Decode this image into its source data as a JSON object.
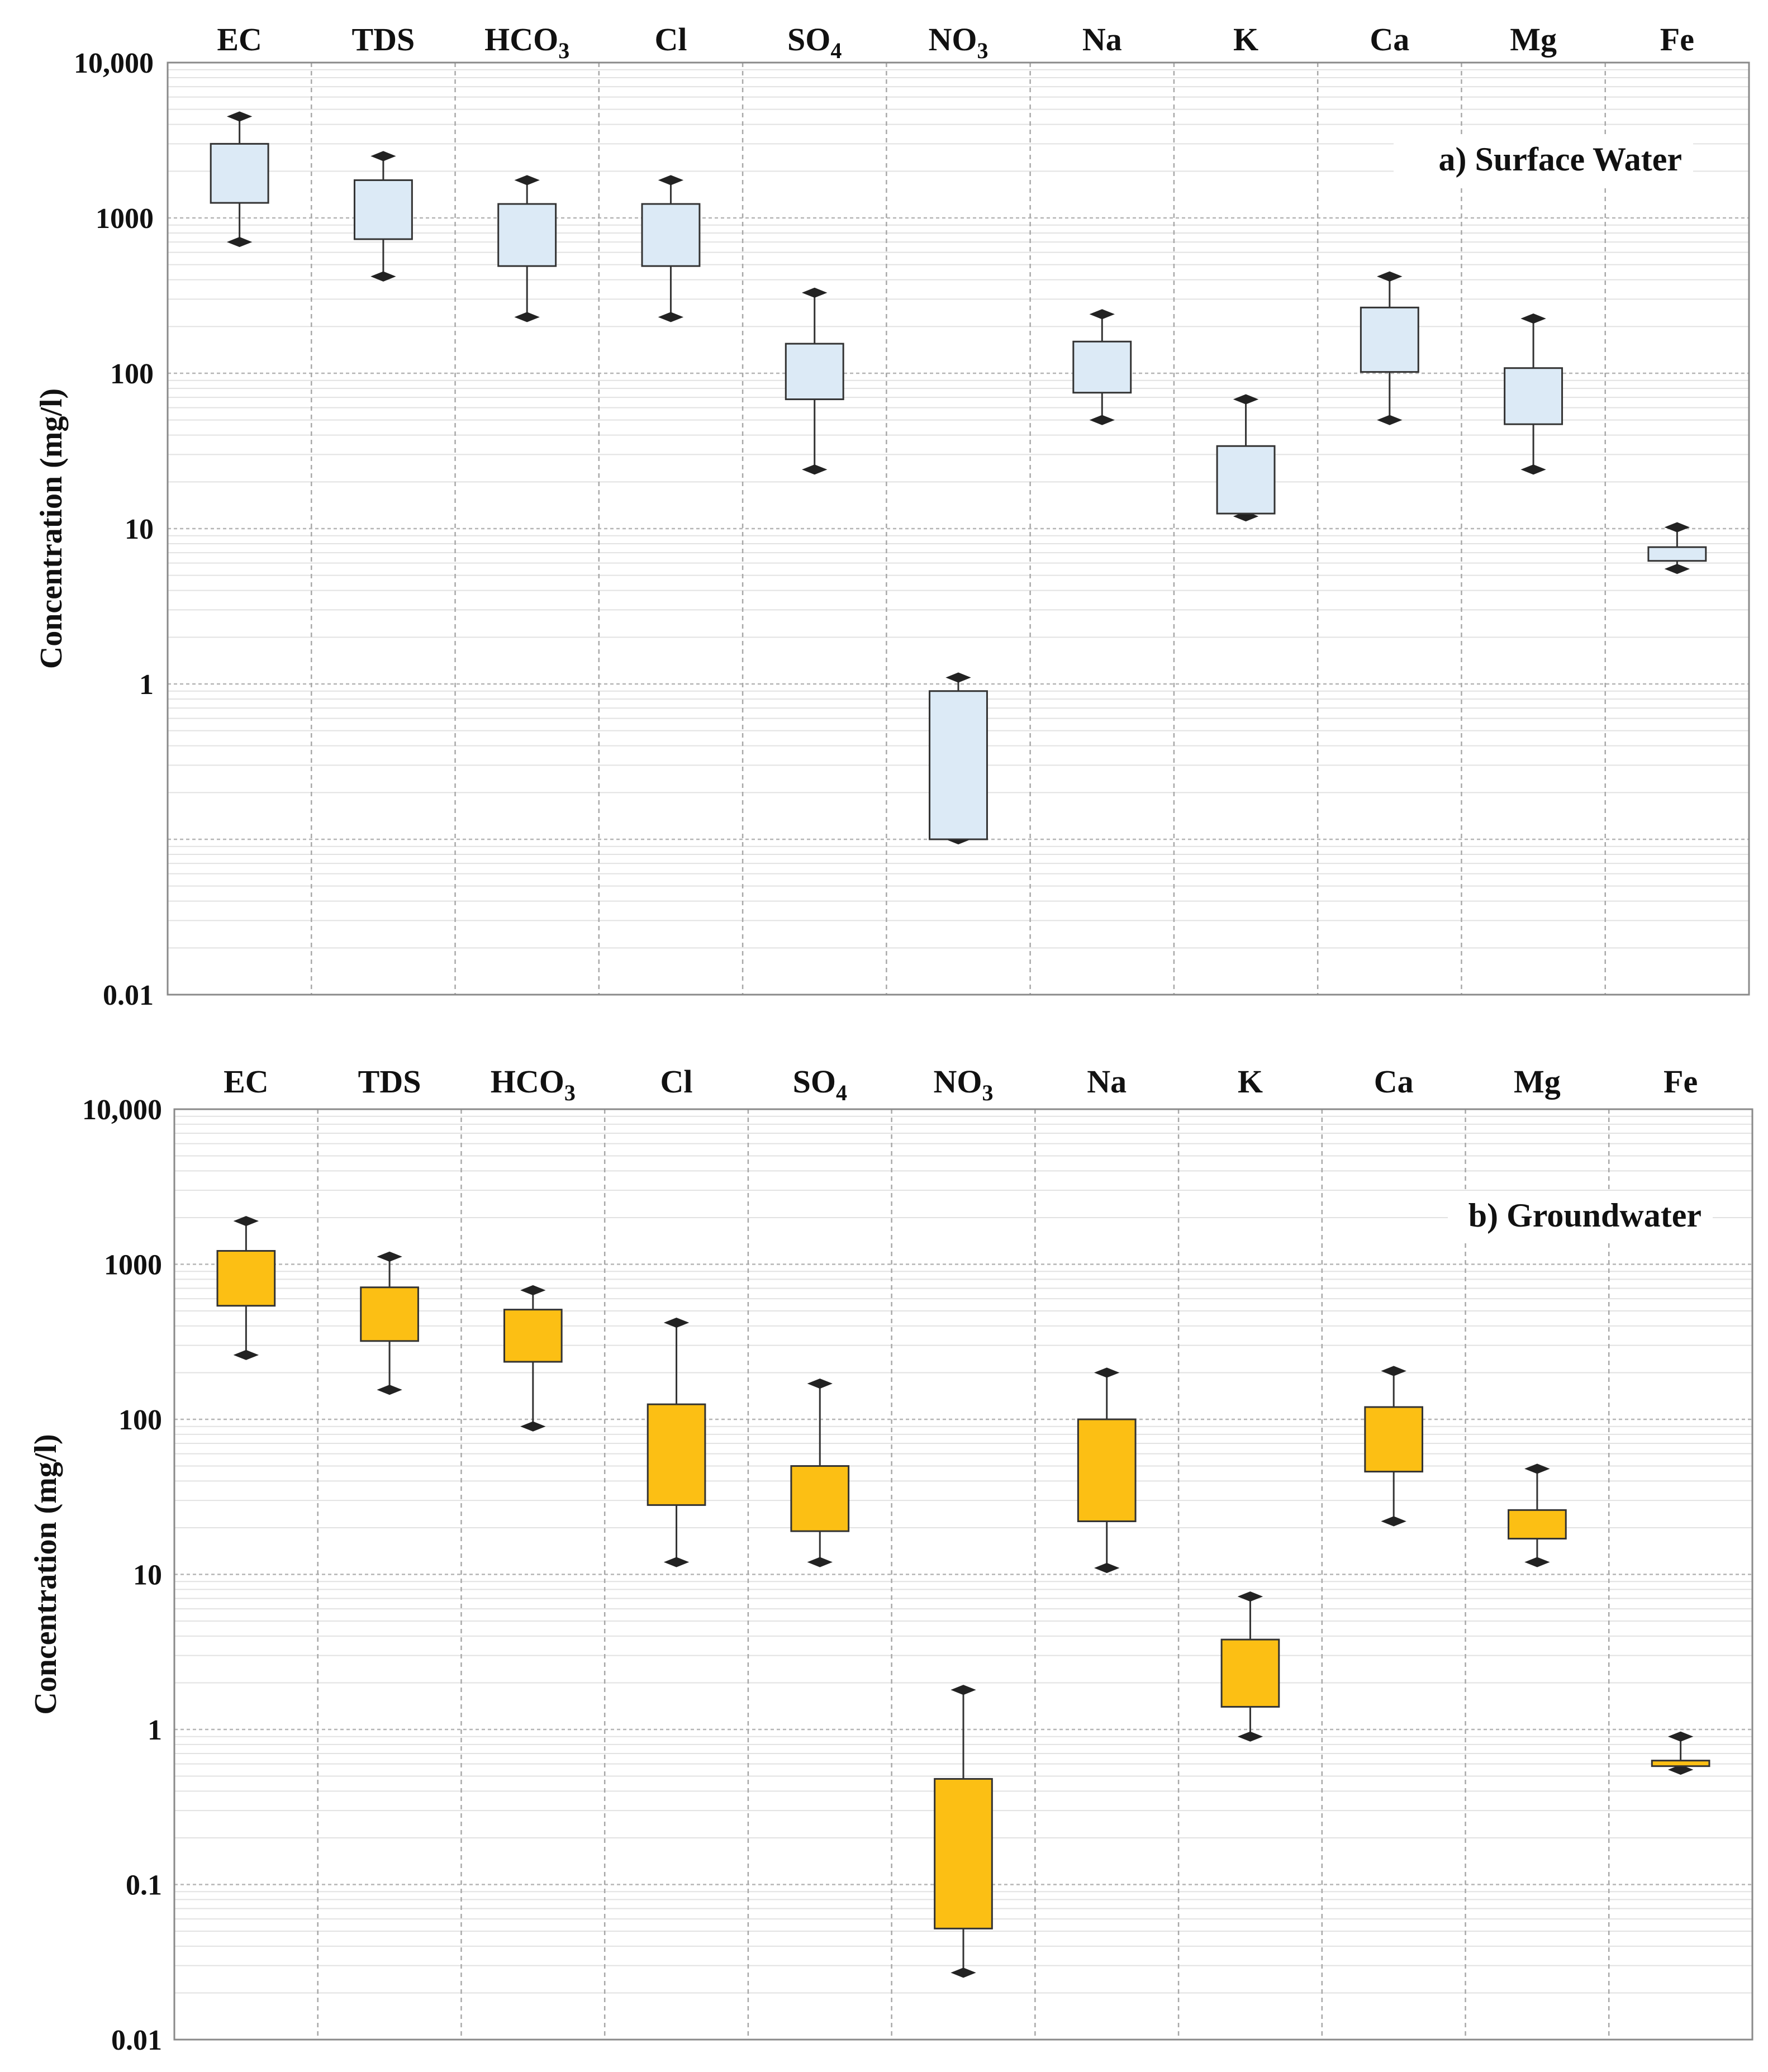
{
  "chart_data": [
    {
      "type": "boxplot",
      "title": "a) Surface Water",
      "ylabel": "Concentration (mg/l)",
      "yscale": "log",
      "ylim": [
        0.01,
        10000
      ],
      "yticks": [
        0.01,
        1,
        10,
        100,
        1000,
        10000
      ],
      "ytick_labels": [
        "0.01",
        "1",
        "10",
        "100",
        "1000",
        "10,000"
      ],
      "fill_color": "#dceaf6",
      "categories": [
        {
          "label": "EC",
          "sub": ""
        },
        {
          "label": "TDS",
          "sub": ""
        },
        {
          "label": "HCO",
          "sub": "3"
        },
        {
          "label": "Cl",
          "sub": ""
        },
        {
          "label": "SO",
          "sub": "4"
        },
        {
          "label": "NO",
          "sub": "3"
        },
        {
          "label": "Na",
          "sub": ""
        },
        {
          "label": "K",
          "sub": ""
        },
        {
          "label": "Ca",
          "sub": ""
        },
        {
          "label": "Mg",
          "sub": ""
        },
        {
          "label": "Fe",
          "sub": ""
        }
      ],
      "boxes": [
        {
          "min": 700,
          "q1": 1250,
          "q3": 3000,
          "max": 4500
        },
        {
          "min": 420,
          "q1": 730,
          "q3": 1750,
          "max": 2500
        },
        {
          "min": 230,
          "q1": 490,
          "q3": 1230,
          "max": 1750
        },
        {
          "min": 230,
          "q1": 490,
          "q3": 1230,
          "max": 1750
        },
        {
          "min": 24,
          "q1": 68,
          "q3": 155,
          "max": 330
        },
        {
          "min": 0.1,
          "q1": 0.1,
          "q3": 0.9,
          "max": 1.1
        },
        {
          "min": 50,
          "q1": 75,
          "q3": 160,
          "max": 240
        },
        {
          "min": 12,
          "q1": 12.5,
          "q3": 34,
          "max": 68
        },
        {
          "min": 50,
          "q1": 102,
          "q3": 265,
          "max": 420
        },
        {
          "min": 24,
          "q1": 47,
          "q3": 108,
          "max": 225
        },
        {
          "min": 5.5,
          "q1": 6.2,
          "q3": 7.6,
          "max": 10.2
        }
      ]
    },
    {
      "type": "boxplot",
      "title": "b) Groundwater",
      "ylabel": "Concentration (mg/l)",
      "yscale": "log",
      "ylim": [
        0.01,
        10000
      ],
      "yticks": [
        0.01,
        0.1,
        1,
        10,
        100,
        1000,
        10000
      ],
      "ytick_labels": [
        "0.01",
        "0.1",
        "1",
        "10",
        "100",
        "1000",
        "10,000"
      ],
      "fill_color": "#fcbf14",
      "categories": [
        {
          "label": "EC",
          "sub": ""
        },
        {
          "label": "TDS",
          "sub": ""
        },
        {
          "label": "HCO",
          "sub": "3"
        },
        {
          "label": "Cl",
          "sub": ""
        },
        {
          "label": "SO",
          "sub": "4"
        },
        {
          "label": "NO",
          "sub": "3"
        },
        {
          "label": "Na",
          "sub": ""
        },
        {
          "label": "K",
          "sub": ""
        },
        {
          "label": "Ca",
          "sub": ""
        },
        {
          "label": "Mg",
          "sub": ""
        },
        {
          "label": "Fe",
          "sub": ""
        }
      ],
      "boxes": [
        {
          "min": 260,
          "q1": 540,
          "q3": 1220,
          "max": 1900
        },
        {
          "min": 155,
          "q1": 320,
          "q3": 710,
          "max": 1120
        },
        {
          "min": 90,
          "q1": 235,
          "q3": 510,
          "max": 680
        },
        {
          "min": 12,
          "q1": 28,
          "q3": 125,
          "max": 420
        },
        {
          "min": 12,
          "q1": 19,
          "q3": 50,
          "max": 170
        },
        {
          "min": 0.027,
          "q1": 0.052,
          "q3": 0.48,
          "max": 1.8
        },
        {
          "min": 11,
          "q1": 22,
          "q3": 100,
          "max": 200
        },
        {
          "min": 0.9,
          "q1": 1.4,
          "q3": 3.8,
          "max": 7.2
        },
        {
          "min": 22,
          "q1": 46,
          "q3": 120,
          "max": 205
        },
        {
          "min": 12,
          "q1": 17,
          "q3": 26,
          "max": 48
        },
        {
          "min": 0.55,
          "q1": 0.58,
          "q3": 0.63,
          "max": 0.9
        }
      ]
    }
  ]
}
